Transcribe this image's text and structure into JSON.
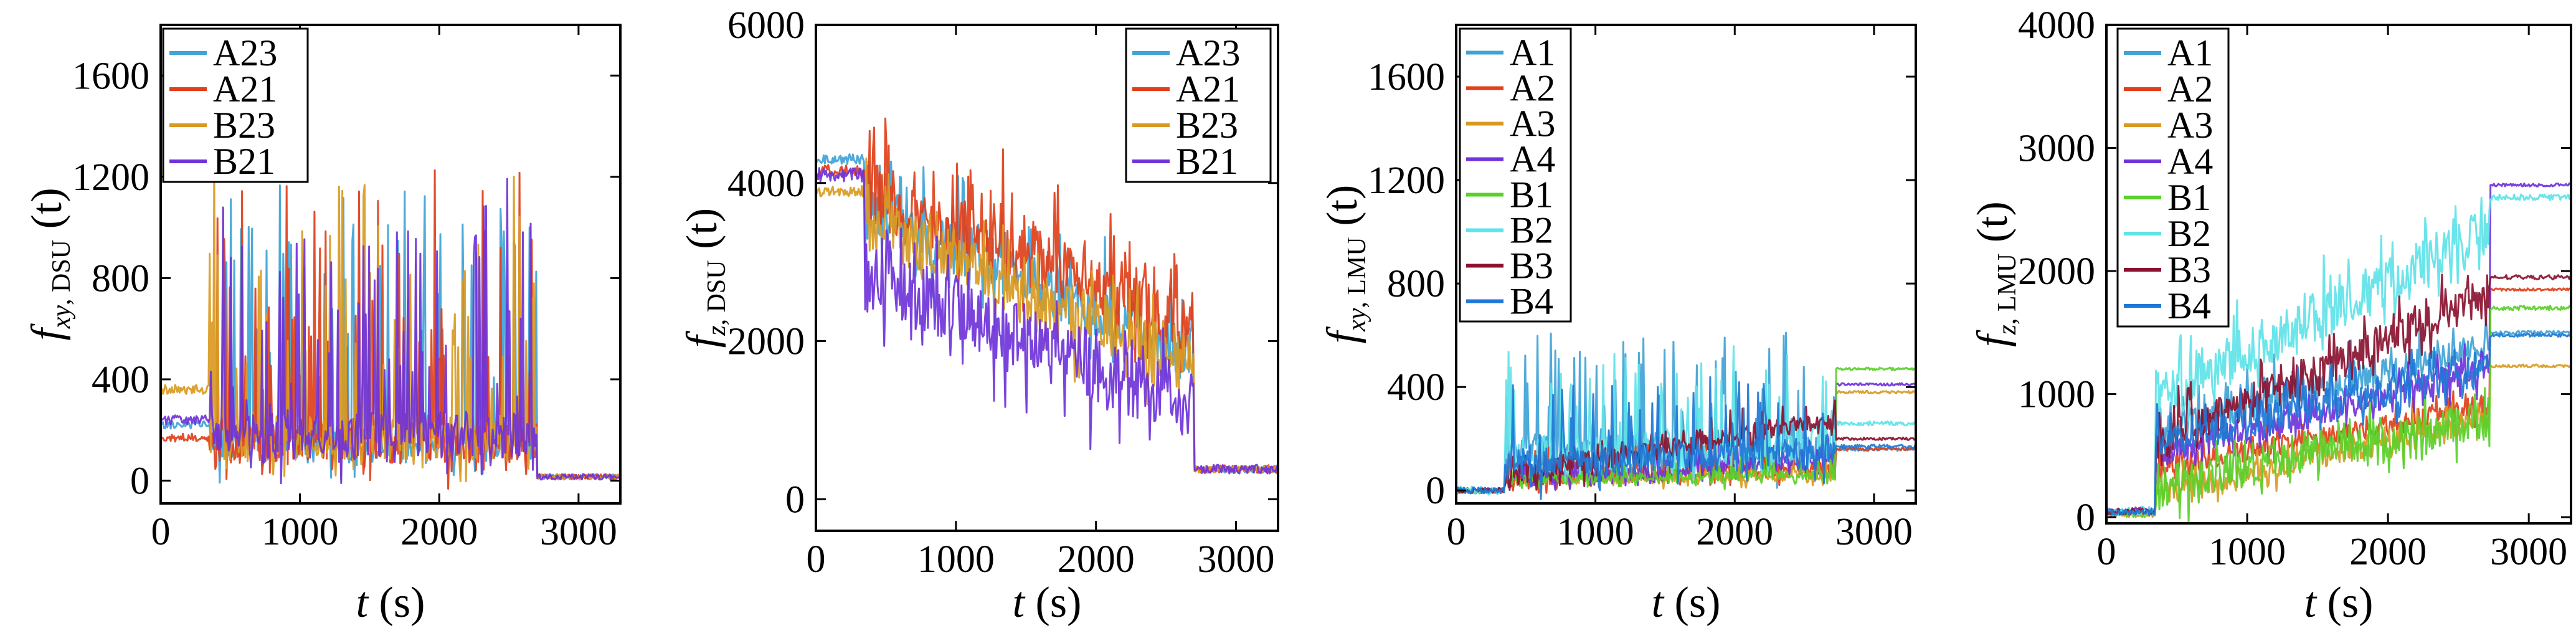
{
  "chart_data": [
    {
      "type": "line",
      "xlabel": {
        "var": "t",
        "unit": "(s)"
      },
      "ylabel": {
        "var": "f",
        "sub": "xy, DSU",
        "unit": "(t)"
      },
      "xlim": [
        0,
        3300
      ],
      "ylim": [
        -90,
        1800
      ],
      "xticks": [
        0,
        1000,
        2000,
        3000
      ],
      "yticks": [
        0,
        400,
        800,
        1200,
        1600
      ],
      "grid": false,
      "legend_position": "top-left",
      "series": [
        {
          "name": "A23",
          "color": "#3fa3d6",
          "pre": 220,
          "bursts_start": 350,
          "bursts_end": 2700,
          "base_start": 150,
          "base_end": 150,
          "noise": 80,
          "spike": 1000,
          "post": 15,
          "seed": 11
        },
        {
          "name": "A21",
          "color": "#e0401a",
          "pre": 170,
          "bursts_start": 350,
          "bursts_end": 2700,
          "base_start": 150,
          "base_end": 150,
          "noise": 80,
          "spike": 1050,
          "post": 15,
          "seed": 12
        },
        {
          "name": "B23",
          "color": "#d99a22",
          "pre": 360,
          "bursts_start": 350,
          "bursts_end": 2700,
          "base_start": 170,
          "base_end": 170,
          "noise": 90,
          "spike": 1050,
          "post": 15,
          "seed": 13
        },
        {
          "name": "B21",
          "color": "#6f33d9",
          "pre": 240,
          "bursts_start": 350,
          "bursts_end": 2700,
          "base_start": 180,
          "base_end": 180,
          "noise": 90,
          "spike": 950,
          "post": 15,
          "seed": 14
        }
      ]
    },
    {
      "type": "line",
      "xlabel": {
        "var": "t",
        "unit": "(s)"
      },
      "ylabel": {
        "var": "f",
        "sub": "z, DSU",
        "unit": "(t)"
      },
      "xlim": [
        0,
        3300
      ],
      "ylim": [
        -400,
        6000
      ],
      "xticks": [
        0,
        1000,
        2000,
        3000
      ],
      "yticks": [
        0,
        2000,
        4000,
        6000
      ],
      "grid": false,
      "legend_position": "top-right",
      "series": [
        {
          "name": "A23",
          "color": "#3fa3d6",
          "pre": 4300,
          "bursts_start": 350,
          "bursts_end": 2700,
          "base_start": 3700,
          "base_end": 1800,
          "noise": 350,
          "spike": 700,
          "post": 380,
          "seed": 21
        },
        {
          "name": "A21",
          "color": "#e0401a",
          "pre": 4150,
          "bursts_start": 350,
          "bursts_end": 2700,
          "base_start": 3900,
          "base_end": 2200,
          "noise": 400,
          "spike": 900,
          "post": 380,
          "seed": 22
        },
        {
          "name": "B23",
          "color": "#d99a22",
          "pre": 3900,
          "bursts_start": 350,
          "bursts_end": 2700,
          "base_start": 3500,
          "base_end": 1700,
          "noise": 350,
          "spike": 600,
          "post": 380,
          "seed": 23
        },
        {
          "name": "B21",
          "color": "#6f33d9",
          "pre": 4100,
          "bursts_start": 350,
          "bursts_end": 2700,
          "base_start": 2800,
          "base_end": 1200,
          "noise": 450,
          "spike": 500,
          "post": 380,
          "seed": 24
        }
      ]
    },
    {
      "type": "line",
      "xlabel": {
        "var": "t",
        "unit": "(s)"
      },
      "ylabel": {
        "var": "f",
        "sub": "xy, LMU",
        "unit": "(t)"
      },
      "xlim": [
        0,
        3300
      ],
      "ylim": [
        -50,
        1800
      ],
      "xticks": [
        0,
        1000,
        2000,
        3000
      ],
      "yticks": [
        0,
        400,
        800,
        1200,
        1600
      ],
      "grid": false,
      "legend_position": "top-left",
      "series": [
        {
          "name": "A1",
          "color": "#3fa3d6",
          "pre": 0,
          "bursts_start": 350,
          "bursts_end": 2720,
          "base_start": 150,
          "base_end": 150,
          "noise": 60,
          "spike": 450,
          "post": 160,
          "seed": 31
        },
        {
          "name": "A2",
          "color": "#e0401a",
          "pre": 0,
          "bursts_start": 350,
          "bursts_end": 2720,
          "base_start": 50,
          "base_end": 80,
          "noise": 30,
          "spike": 120,
          "post": 160,
          "seed": 32
        },
        {
          "name": "A3",
          "color": "#d99a22",
          "pre": 0,
          "bursts_start": 350,
          "bursts_end": 2720,
          "base_start": 40,
          "base_end": 60,
          "noise": 20,
          "spike": 60,
          "post": 380,
          "seed": 33
        },
        {
          "name": "A4",
          "color": "#6f33d9",
          "pre": 0,
          "bursts_start": 350,
          "bursts_end": 2720,
          "base_start": 40,
          "base_end": 120,
          "noise": 30,
          "spike": 80,
          "post": 410,
          "seed": 34
        },
        {
          "name": "B1",
          "color": "#5ad02a",
          "pre": 0,
          "bursts_start": 350,
          "bursts_end": 2720,
          "base_start": 40,
          "base_end": 60,
          "noise": 20,
          "spike": 80,
          "post": 470,
          "seed": 35
        },
        {
          "name": "B2",
          "color": "#5fe3e8",
          "pre": 0,
          "bursts_start": 350,
          "bursts_end": 2720,
          "base_start": 120,
          "base_end": 200,
          "noise": 80,
          "spike": 350,
          "post": 260,
          "seed": 36
        },
        {
          "name": "B3",
          "color": "#8a1230",
          "pre": 0,
          "bursts_start": 350,
          "bursts_end": 2720,
          "base_start": 50,
          "base_end": 280,
          "noise": 40,
          "spike": 80,
          "post": 200,
          "seed": 37
        },
        {
          "name": "B4",
          "color": "#1f78d6",
          "pre": 0,
          "bursts_start": 350,
          "bursts_end": 2720,
          "base_start": 100,
          "base_end": 150,
          "noise": 60,
          "spike": 300,
          "post": 170,
          "seed": 38
        }
      ]
    },
    {
      "type": "line",
      "xlabel": {
        "var": "t",
        "unit": "(s)"
      },
      "ylabel": {
        "var": "f",
        "sub": "z, LMU",
        "unit": "(t)"
      },
      "xlim": [
        0,
        3300
      ],
      "ylim": [
        -50,
        4000
      ],
      "xticks": [
        0,
        1000,
        2000,
        3000
      ],
      "yticks": [
        0,
        1000,
        2000,
        3000,
        4000
      ],
      "grid": false,
      "legend_position": "top-left",
      "series": [
        {
          "name": "A1",
          "color": "#3fa3d6",
          "pre": 40,
          "bursts_start": 350,
          "bursts_end": 2720,
          "base_start": 700,
          "base_end": 1400,
          "noise": 120,
          "spike": 300,
          "post": 1500,
          "seed": 41
        },
        {
          "name": "A2",
          "color": "#e0401a",
          "pre": 40,
          "bursts_start": 350,
          "bursts_end": 2720,
          "base_start": 400,
          "base_end": 900,
          "noise": 80,
          "spike": 150,
          "post": 1850,
          "seed": 42
        },
        {
          "name": "A3",
          "color": "#d99a22",
          "pre": 20,
          "bursts_start": 350,
          "bursts_end": 2720,
          "base_start": 200,
          "base_end": 800,
          "noise": 100,
          "spike": 150,
          "post": 1230,
          "seed": 43
        },
        {
          "name": "A4",
          "color": "#6f33d9",
          "pre": 60,
          "bursts_start": 350,
          "bursts_end": 2720,
          "base_start": 500,
          "base_end": 1200,
          "noise": 100,
          "spike": 200,
          "post": 2700,
          "seed": 44
        },
        {
          "name": "B1",
          "color": "#5ad02a",
          "pre": 30,
          "bursts_start": 350,
          "bursts_end": 2720,
          "base_start": 250,
          "base_end": 800,
          "noise": 150,
          "spike": 200,
          "post": 1700,
          "seed": 45
        },
        {
          "name": "B2",
          "color": "#5fe3e8",
          "pre": 50,
          "bursts_start": 350,
          "bursts_end": 2720,
          "base_start": 1000,
          "base_end": 2300,
          "noise": 200,
          "spike": 350,
          "post": 2600,
          "seed": 46
        },
        {
          "name": "B3",
          "color": "#8a1230",
          "pre": 50,
          "bursts_start": 350,
          "bursts_end": 2720,
          "base_start": 600,
          "base_end": 1800,
          "noise": 150,
          "spike": 300,
          "post": 1950,
          "seed": 47
        },
        {
          "name": "B4",
          "color": "#1f78d6",
          "pre": 40,
          "bursts_start": 350,
          "bursts_end": 2720,
          "base_start": 600,
          "base_end": 1200,
          "noise": 120,
          "spike": 250,
          "post": 1480,
          "seed": 48
        }
      ]
    }
  ]
}
